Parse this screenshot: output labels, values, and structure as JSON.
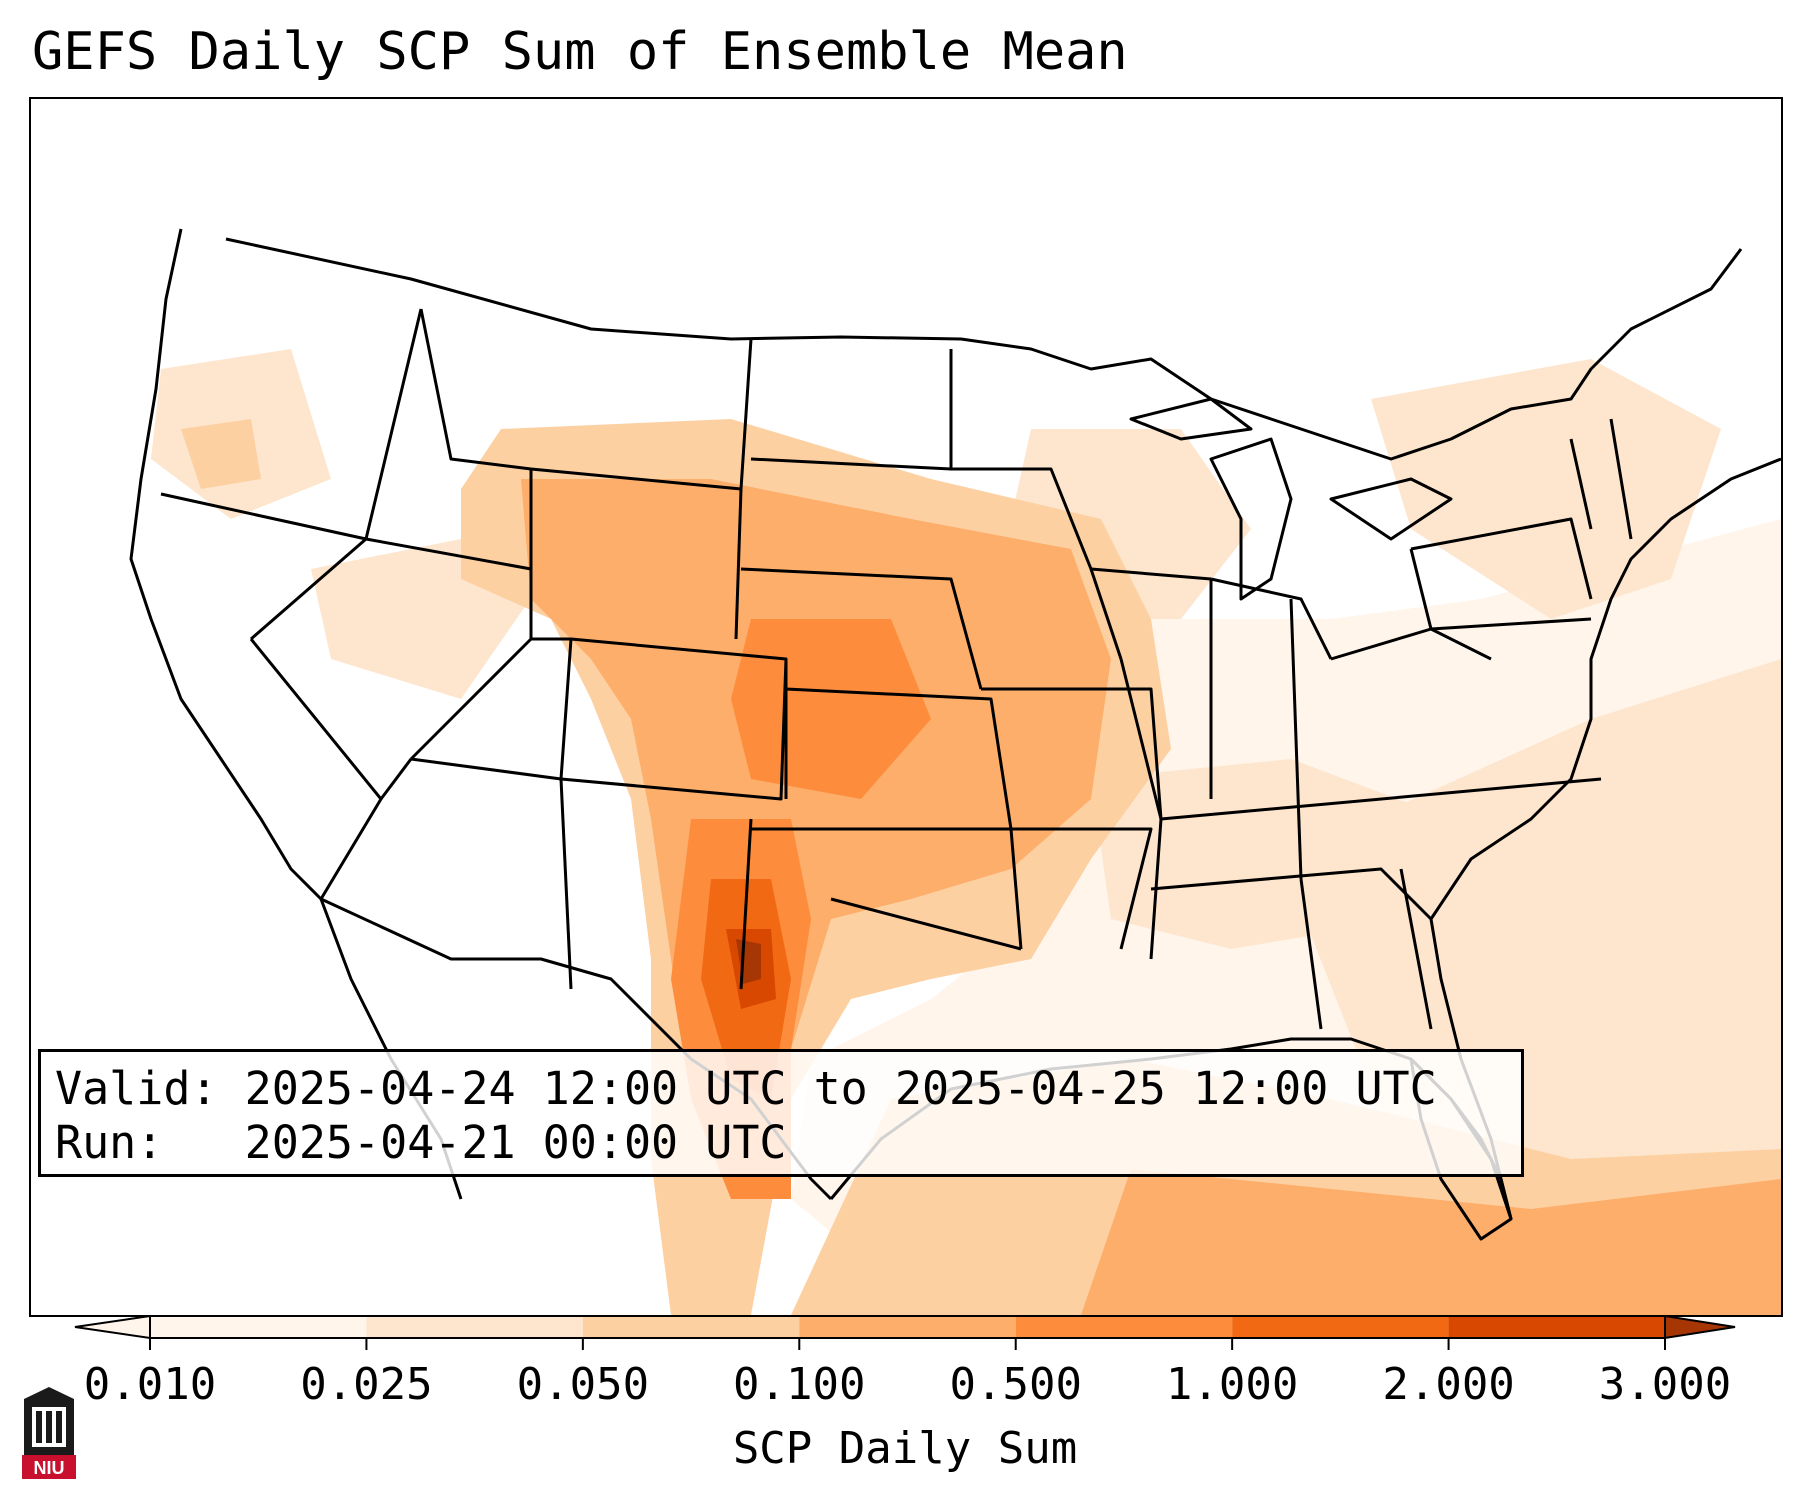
{
  "title": "GEFS Daily SCP Sum of Ensemble Mean",
  "info": {
    "valid_label": "Valid:",
    "valid_value": "2025-04-24 12:00 UTC to 2025-04-25 12:00 UTC",
    "run_label": "Run:",
    "run_value": "2025-04-21 00:00 UTC"
  },
  "colorbar": {
    "label": "SCP Daily Sum",
    "ticks": [
      "0.010",
      "0.025",
      "0.050",
      "0.100",
      "0.500",
      "1.000",
      "2.000",
      "3.000"
    ],
    "colors": [
      "#fff5eb",
      "#fee6ce",
      "#fdd0a2",
      "#fdae6b",
      "#fd8d3c",
      "#f16913",
      "#d94801",
      "#a63603"
    ],
    "extend": "both"
  },
  "logo": {
    "text": "NIU"
  },
  "map": {
    "region": "Continental United States",
    "field": "SCP daily sum",
    "max_area": "West Texas",
    "colors": {
      "background": "#ffffff",
      "borders": "#000000"
    }
  }
}
